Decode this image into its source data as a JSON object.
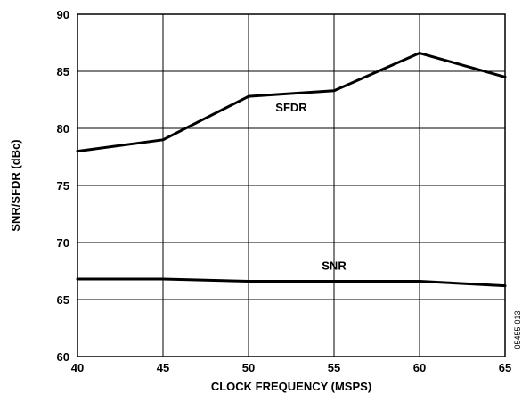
{
  "chart_data": {
    "type": "line",
    "title": "",
    "xlabel": "CLOCK FREQUENCY (MSPS)",
    "ylabel": "SNR/SFDR (dBc)",
    "x": [
      40,
      45,
      50,
      55,
      60,
      65
    ],
    "xlim": [
      40,
      65
    ],
    "ylim": [
      60,
      90
    ],
    "x_ticks": [
      "40",
      "45",
      "50",
      "55",
      "60",
      "65"
    ],
    "y_ticks": [
      "60",
      "65",
      "70",
      "75",
      "80",
      "85",
      "90"
    ],
    "grid": true,
    "series": [
      {
        "name": "SFDR",
        "values": [
          78.0,
          79.0,
          82.8,
          83.3,
          86.6,
          84.5
        ]
      },
      {
        "name": "SNR",
        "values": [
          66.8,
          66.8,
          66.6,
          66.6,
          66.6,
          66.2
        ]
      }
    ],
    "figure_id": "05455-013",
    "colors": {
      "line": "#000000",
      "grid": "#000000",
      "background": "#ffffff"
    }
  }
}
